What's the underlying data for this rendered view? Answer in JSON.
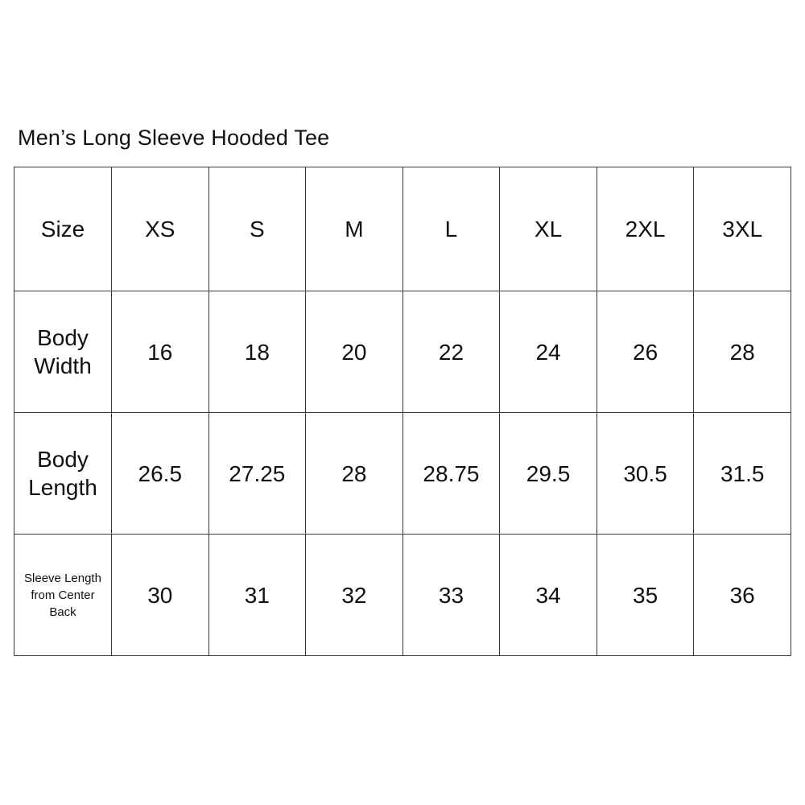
{
  "title": "Men’s Long Sleeve Hooded Tee",
  "chart_data": {
    "type": "table",
    "title": "Men’s Long Sleeve Hooded Tee",
    "columns": [
      "Size",
      "XS",
      "S",
      "M",
      "L",
      "XL",
      "2XL",
      "3XL"
    ],
    "rows": [
      {
        "label": "Body Width",
        "values": [
          "16",
          "18",
          "20",
          "22",
          "24",
          "26",
          "28"
        ]
      },
      {
        "label": "Body Length",
        "values": [
          "26.5",
          "27.25",
          "28",
          "28.75",
          "29.5",
          "30.5",
          "31.5"
        ]
      },
      {
        "label": "Sleeve Length from Center Back",
        "values": [
          "30",
          "31",
          "32",
          "33",
          "34",
          "35",
          "36"
        ]
      }
    ],
    "layout": {
      "grid": true,
      "border_color": "#3a3a3a",
      "background_color": "#ffffff",
      "text_color": "#111111"
    }
  }
}
